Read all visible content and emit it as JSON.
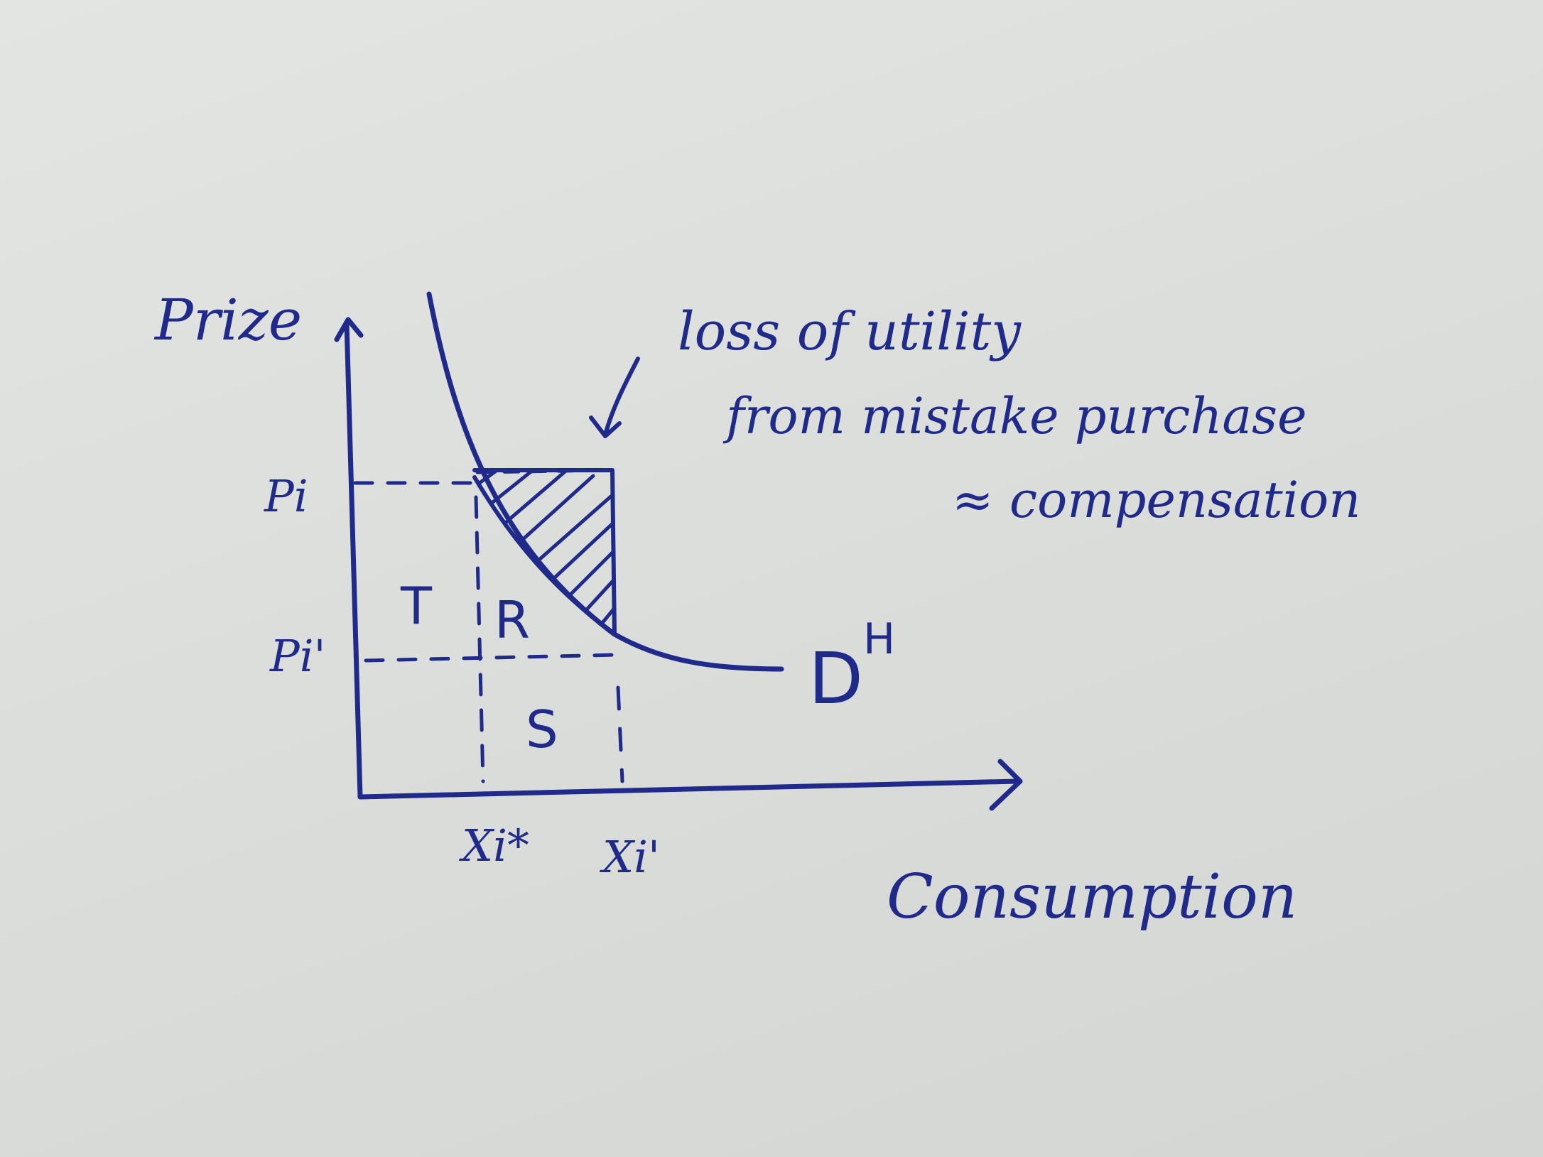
{
  "axes": {
    "y_label": "Prize",
    "x_label": "Consumption"
  },
  "ticks": {
    "p_high": "Pi",
    "p_low": "Pi'",
    "x_star": "Xi*",
    "x_prime": "Xi'"
  },
  "regions": {
    "t": "T",
    "r": "R",
    "s": "S"
  },
  "curve_label": {
    "main": "D",
    "superscript": "H"
  },
  "annotation": {
    "line1": "loss of utility",
    "line2": "from mistake purchase",
    "line3": "≈ compensation"
  },
  "ink_color": "#1f2a8a"
}
